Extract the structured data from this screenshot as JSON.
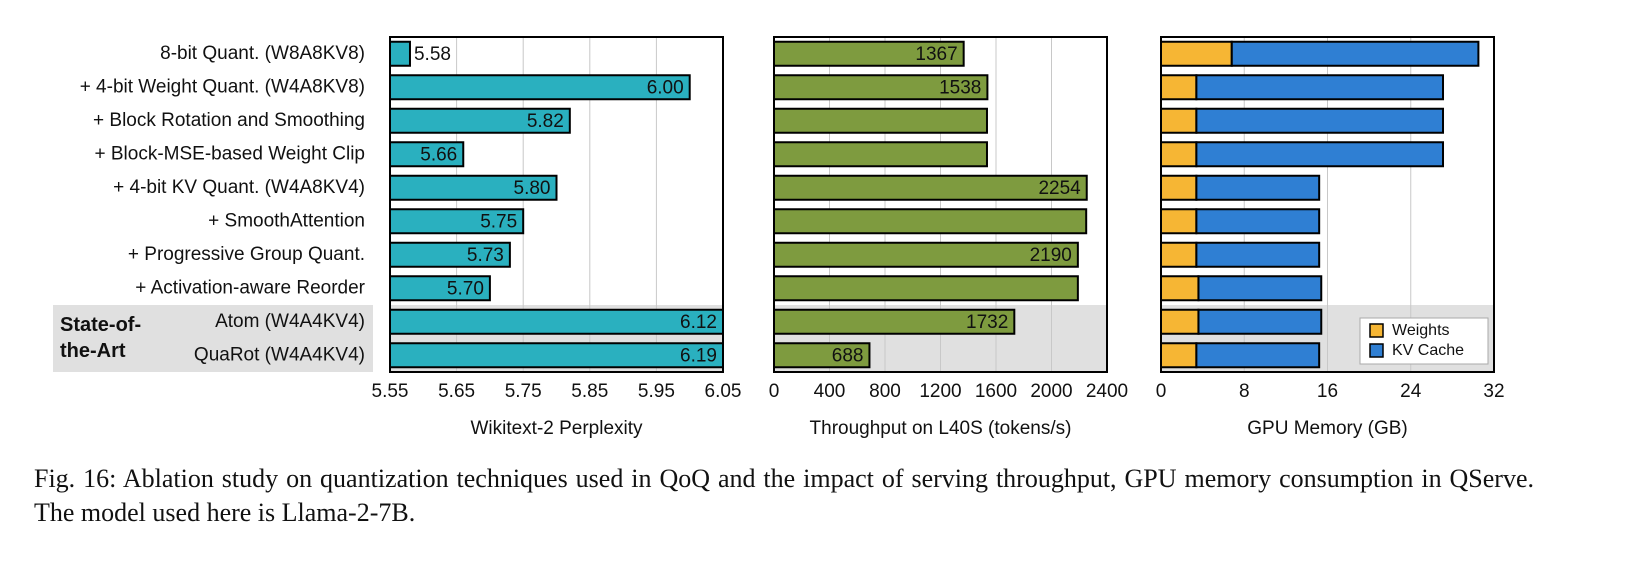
{
  "chart_data": [
    {
      "type": "barh",
      "xlabel": "Wikitext-2 Perplexity",
      "categories": [
        "8-bit Quant. (W8A8KV8)",
        "+ 4-bit Weight Quant. (W4A8KV8)",
        "+ Block Rotation and Smoothing",
        "+ Block-MSE-based Weight Clip",
        "+ 4-bit KV Quant. (W4A8KV4)",
        "+ SmoothAttention",
        "+ Progressive Group Quant.",
        "+ Activation-aware Reorder",
        "Atom (W4A4KV4)",
        "QuaRot (W4A4KV4)"
      ],
      "annotations": [
        "State-of-the-Art"
      ],
      "values": [
        5.58,
        6.0,
        5.82,
        5.66,
        5.8,
        5.75,
        5.73,
        5.7,
        6.12,
        6.19
      ],
      "value_labels": [
        "5.58",
        "6.00",
        "5.82",
        "5.66",
        "5.80",
        "5.75",
        "5.73",
        "5.70",
        "6.12",
        "6.19"
      ],
      "color": "#2ab0bf",
      "xlim": [
        5.55,
        6.05
      ],
      "xticks": [
        5.55,
        5.65,
        5.75,
        5.85,
        5.95,
        6.05
      ],
      "grid": true
    },
    {
      "type": "barh",
      "xlabel": "Throughput on L40S (tokens/s)",
      "values": [
        1367,
        1538,
        1535,
        1535,
        2254,
        2250,
        2190,
        2190,
        1732,
        688
      ],
      "value_labels": [
        "1367",
        "1538",
        null,
        null,
        "2254",
        null,
        "2190",
        null,
        "1732",
        "688"
      ],
      "color": "#7e9b3f",
      "xlim": [
        0,
        2400
      ],
      "xticks": [
        0,
        400,
        800,
        1200,
        1600,
        2000,
        2400
      ],
      "grid": true
    },
    {
      "type": "stackedbarh",
      "xlabel": "GPU Memory (GB)",
      "series": [
        {
          "name": "Weights",
          "color": "#f6b634",
          "values": [
            6.8,
            3.4,
            3.4,
            3.4,
            3.4,
            3.4,
            3.4,
            3.6,
            3.6,
            3.4
          ]
        },
        {
          "name": "KV Cache",
          "color": "#2f7fd3",
          "values": [
            23.7,
            23.7,
            23.7,
            23.7,
            11.8,
            11.8,
            11.8,
            11.8,
            11.8,
            11.8
          ]
        }
      ],
      "xlim": [
        0,
        32
      ],
      "xticks": [
        0,
        8,
        16,
        24,
        32
      ],
      "grid": true,
      "legend": "lower right"
    }
  ],
  "caption": "Fig. 16: Ablation study on quantization techniques used in QoQ and the impact of serving throughput, GPU memory consumption in QServe. The model used here is Llama-2-7B."
}
